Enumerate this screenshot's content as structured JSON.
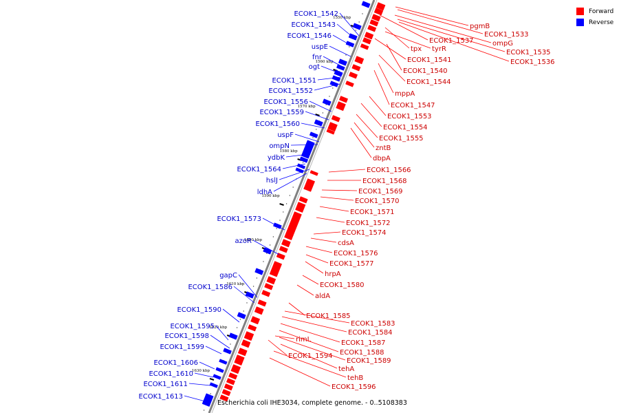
{
  "caption": "Escherichia coli IHE3034, complete genome. - 0..5108383",
  "legend": [
    {
      "label": "Forward",
      "color": "#ff0000"
    },
    {
      "label": "Reverse",
      "color": "#0000ff"
    }
  ],
  "colors": {
    "forward": "#ff0000",
    "reverse": "#0000ff",
    "axis": "#808080"
  },
  "scale_labels": [
    "1550 kbp",
    "1560 kbp",
    "1570 kbp",
    "1580 kbp",
    "1590 kbp",
    "1600 kbp",
    "1610 kbp",
    "1620 kbp",
    "1630 kbp"
  ],
  "forward_labels": [
    "pgmB",
    "ECOK1_1533",
    "ompG",
    "ECOK1_1537",
    "ECOK1_1535",
    "tpx",
    "tyrR",
    "ECOK1_1536",
    "ECOK1_1541",
    "ECOK1_1540",
    "ECOK1_1544",
    "mppA",
    "ECOK1_1547",
    "ECOK1_1553",
    "ECOK1_1554",
    "ECOK1_1555",
    "zntB",
    "dbpA",
    "ECOK1_1566",
    "ECOK1_1568",
    "ECOK1_1569",
    "ECOK1_1570",
    "ECOK1_1571",
    "ECOK1_1572",
    "ECOK1_1574",
    "cdsA",
    "ECOK1_1576",
    "ECOK1_1577",
    "hrpA",
    "ECOK1_1580",
    "aldA",
    "ECOK1_1585",
    "ECOK1_1583",
    "ECOK1_1584",
    "rimL",
    "ECOK1_1587",
    "ECOK1_1588",
    "ECOK1_1594",
    "ECOK1_1589",
    "tehA",
    "tehB",
    "ECOK1_1596"
  ],
  "reverse_labels": [
    "ECOK1_1542",
    "ECOK1_1543",
    "ECOK1_1546",
    "uspE",
    "fnr",
    "ogt",
    "ECOK1_1551",
    "ECOK1_1552",
    "ECOK1_1556",
    "ECOK1_1559",
    "ECOK1_1560",
    "uspF",
    "ompN",
    "ydbK",
    "ECOK1_1564",
    "hslJ",
    "ldhA",
    "ECOK1_1573",
    "azoR",
    "gapC",
    "ECOK1_1586",
    "ECOK1_1590",
    "ECOK1_1595",
    "ECOK1_1598",
    "ECOK1_1599",
    "ECOK1_1606",
    "ECOK1_1610",
    "ECOK1_1611",
    "ECOK1_1613"
  ]
}
